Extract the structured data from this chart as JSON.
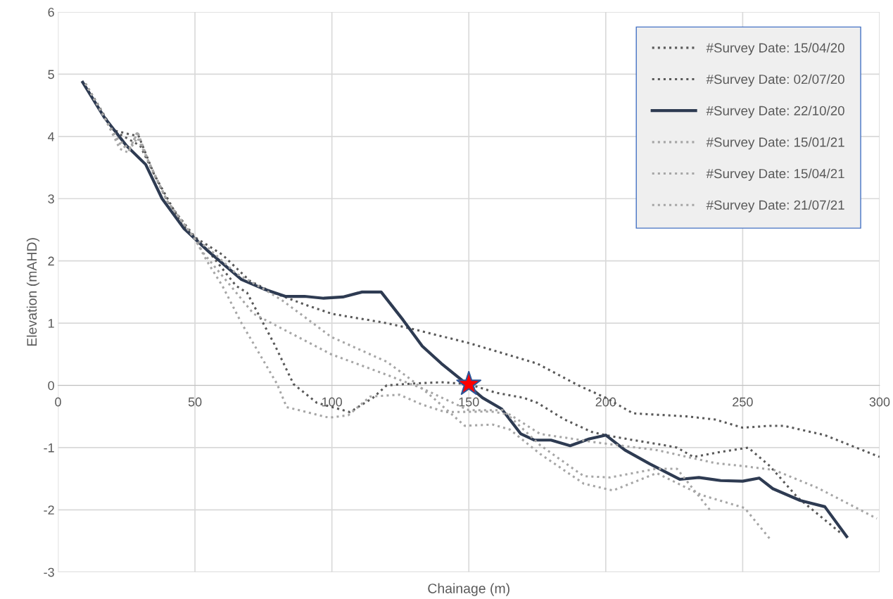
{
  "chart_data": {
    "type": "line",
    "xlabel": "Chainage (m)",
    "ylabel": "Elevation (mAHD)",
    "xlim": [
      0,
      300
    ],
    "xticks": [
      0,
      50,
      100,
      150,
      200,
      250,
      300
    ],
    "ylim": [
      -3,
      6
    ],
    "yticks": [
      -3,
      -2,
      -1,
      0,
      1,
      2,
      3,
      4,
      5,
      6
    ],
    "grid": true,
    "legend": "top right",
    "marker": "none",
    "series": [
      {
        "name": "#Survey Date: 15/04/20",
        "color": "#595959",
        "line_style": "dotted",
        "x": [
          10,
          20,
          30,
          40,
          50,
          60,
          70,
          78,
          90,
          100,
          120,
          130,
          150,
          175,
          190,
          200,
          210,
          230,
          240,
          250,
          260,
          265,
          280,
          300
        ],
        "values": [
          4.85,
          4.1,
          3.85,
          2.95,
          2.38,
          2.1,
          1.68,
          1.5,
          1.3,
          1.15,
          1.0,
          0.9,
          0.68,
          0.35,
          0.0,
          -0.2,
          -0.45,
          -0.5,
          -0.55,
          -0.68,
          -0.65,
          -0.65,
          -0.8,
          -1.15
        ]
      },
      {
        "name": "#Survey Date: 02/07/20",
        "color": "#595959",
        "line_style": "dotted",
        "x": [
          10,
          20,
          29.5,
          35,
          45,
          55,
          65,
          69,
          79,
          86,
          94.5,
          106.6,
          115,
          120,
          130,
          140,
          150,
          160,
          170,
          175,
          185,
          195,
          200,
          210,
          220,
          226,
          232,
          242,
          252,
          260,
          270,
          286
        ],
        "values": [
          4.85,
          4.1,
          4.0,
          3.4,
          2.6,
          2.15,
          1.6,
          1.49,
          0.66,
          0.02,
          -0.28,
          -0.43,
          -0.2,
          0.0,
          0.03,
          0.05,
          0.02,
          -0.12,
          -0.2,
          -0.28,
          -0.55,
          -0.75,
          -0.8,
          -0.88,
          -0.95,
          -1.0,
          -1.15,
          -1.07,
          -1.0,
          -1.3,
          -1.8,
          -2.38
        ]
      },
      {
        "name": "#Survey Date: 22/10/20",
        "color": "#2e3b52",
        "line_style": "solid",
        "x": [
          9,
          17,
          25,
          32,
          38,
          46,
          55,
          67,
          75,
          83,
          90,
          97,
          104,
          111,
          118,
          126,
          133,
          140,
          147,
          155,
          162,
          169,
          174,
          180,
          187,
          194,
          200,
          207,
          216,
          227,
          234,
          242,
          250,
          256,
          261,
          271,
          280,
          288
        ],
        "values": [
          4.87,
          4.3,
          3.85,
          3.55,
          3.0,
          2.52,
          2.15,
          1.7,
          1.55,
          1.43,
          1.43,
          1.4,
          1.42,
          1.5,
          1.5,
          1.05,
          0.63,
          0.35,
          0.1,
          -0.2,
          -0.38,
          -0.78,
          -0.88,
          -0.88,
          -0.97,
          -0.86,
          -0.8,
          -1.04,
          -1.26,
          -1.51,
          -1.48,
          -1.53,
          -1.54,
          -1.49,
          -1.66,
          -1.85,
          -1.95,
          -2.43
        ]
      },
      {
        "name": "#Survey Date: 15/01/21",
        "color": "#a6a6a6",
        "line_style": "dotted",
        "x": [
          10,
          17,
          22,
          26,
          29,
          33,
          40,
          50,
          55,
          65,
          75,
          81.7,
          90,
          99.7,
          120,
          128.7,
          137,
          148.5,
          158.7,
          165,
          176,
          192,
          202.6,
          218.6,
          234.8,
          250.7,
          260
        ],
        "values": [
          4.85,
          4.3,
          3.95,
          3.8,
          4.05,
          3.6,
          2.95,
          2.35,
          2.2,
          1.8,
          1.55,
          1.37,
          1.1,
          0.78,
          0.38,
          0.1,
          -0.2,
          -0.65,
          -0.63,
          -0.71,
          -1.1,
          -1.58,
          -1.69,
          -1.41,
          -1.76,
          -1.97,
          -2.47
        ]
      },
      {
        "name": "#Survey Date: 15/04/21",
        "color": "#a6a6a6",
        "line_style": "dotted",
        "x": [
          10,
          17,
          22.6,
          25.7,
          29,
          33,
          40,
          50,
          53,
          63,
          71.4,
          99.7,
          120,
          133,
          150,
          162.5,
          176,
          192,
          201.6,
          218.6,
          226,
          238
        ],
        "values": [
          4.85,
          4.3,
          3.8,
          3.74,
          4.08,
          3.6,
          2.95,
          2.35,
          2.13,
          1.6,
          1.15,
          0.5,
          0.17,
          -0.05,
          -0.4,
          -0.4,
          -0.96,
          -1.46,
          -1.48,
          -1.34,
          -1.34,
          -2.0
        ]
      },
      {
        "name": "#Survey Date: 21/07/21",
        "color": "#a6a6a6",
        "line_style": "dotted",
        "x": [
          10,
          17,
          22,
          26,
          29,
          33,
          40,
          50,
          55,
          60,
          67,
          80,
          83.5,
          99,
          106,
          114,
          124.6,
          133,
          141.5,
          158,
          165,
          176,
          197,
          218.6,
          240,
          250.7,
          261.5,
          277.5,
          299
        ],
        "values": [
          4.85,
          4.3,
          3.9,
          3.78,
          3.98,
          3.6,
          2.95,
          2.35,
          1.95,
          1.6,
          1.0,
          0.02,
          -0.35,
          -0.52,
          -0.48,
          -0.18,
          -0.15,
          -0.31,
          -0.43,
          -0.42,
          -0.47,
          -0.78,
          -0.92,
          -1.04,
          -1.25,
          -1.3,
          -1.36,
          -1.65,
          -2.14
        ]
      },
      {
        "type": "scatter",
        "color": "#ff0000",
        "marker": "star",
        "x": [
          150
        ],
        "values": [
          0.02
        ]
      }
    ]
  }
}
